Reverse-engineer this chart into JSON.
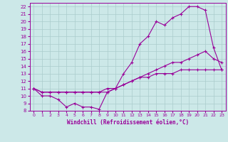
{
  "xlabel": "Windchill (Refroidissement éolien,°C)",
  "bg_color": "#cce8e8",
  "grid_color": "#aacccc",
  "line_color": "#990099",
  "xlim": [
    -0.5,
    23.5
  ],
  "ylim": [
    8,
    22.5
  ],
  "xticks": [
    0,
    1,
    2,
    3,
    4,
    5,
    6,
    7,
    8,
    9,
    10,
    11,
    12,
    13,
    14,
    15,
    16,
    17,
    18,
    19,
    20,
    21,
    22,
    23
  ],
  "yticks": [
    8,
    9,
    10,
    11,
    12,
    13,
    14,
    15,
    16,
    17,
    18,
    19,
    20,
    21,
    22
  ],
  "line1_x": [
    0,
    1,
    2,
    3,
    4,
    5,
    6,
    7,
    8,
    9,
    10,
    11,
    12,
    13,
    14,
    15,
    16,
    17,
    18,
    19,
    20,
    21,
    22,
    23
  ],
  "line1_y": [
    11,
    10,
    10,
    9.5,
    8.5,
    9,
    8.5,
    8.5,
    8.2,
    10.5,
    11,
    13,
    14.5,
    17,
    18,
    20,
    19.5,
    20.5,
    21,
    22,
    22,
    21.5,
    16.5,
    13.5
  ],
  "line2_x": [
    0,
    1,
    2,
    3,
    4,
    5,
    6,
    7,
    8,
    9,
    10,
    11,
    12,
    13,
    14,
    15,
    16,
    17,
    18,
    19,
    20,
    21,
    22,
    23
  ],
  "line2_y": [
    11,
    10.5,
    10.5,
    10.5,
    10.5,
    10.5,
    10.5,
    10.5,
    10.5,
    10.5,
    11,
    11.5,
    12,
    12.5,
    13,
    13.5,
    14,
    14.5,
    14.5,
    15,
    15.5,
    16,
    15,
    14.5
  ],
  "line3_x": [
    0,
    1,
    2,
    3,
    4,
    5,
    6,
    7,
    8,
    9,
    10,
    11,
    12,
    13,
    14,
    15,
    16,
    17,
    18,
    19,
    20,
    21,
    22,
    23
  ],
  "line3_y": [
    11,
    10.5,
    10.5,
    10.5,
    10.5,
    10.5,
    10.5,
    10.5,
    10.5,
    11,
    11,
    11.5,
    12,
    12.5,
    12.5,
    13,
    13,
    13,
    13.5,
    13.5,
    13.5,
    13.5,
    13.5,
    13.5
  ]
}
